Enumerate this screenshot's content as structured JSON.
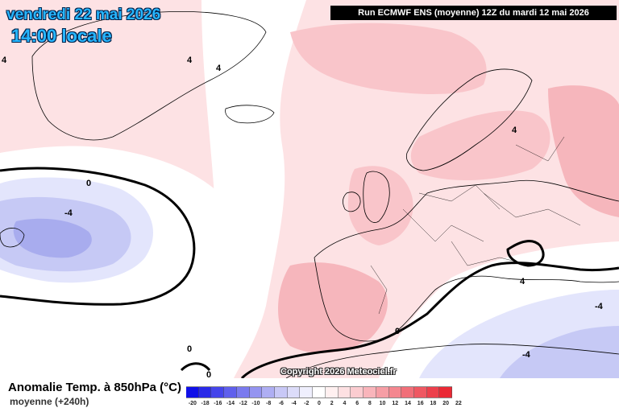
{
  "header": {
    "date": "vendredi 22 mai 2026",
    "time": "14:00 locale",
    "run_info": "Run ECMWF ENS (moyenne) 12Z du mardi 12 mai 2026"
  },
  "map": {
    "copyright": "Copyright 2026 Meteociel.fr",
    "contour_labels": [
      "4",
      "0",
      "-4",
      "0",
      "4",
      "4",
      "4",
      "0",
      "-4",
      "-4",
      "0",
      "4"
    ],
    "colors": {
      "warm_light": "#fde2e4",
      "warm_mid": "#f9c5ca",
      "warm_strong": "#f3aeb4",
      "cool_light": "#e3e5fc",
      "cool_mid": "#c6c9f5",
      "cool_strong": "#a8acee"
    }
  },
  "legend": {
    "title": "Anomalie Temp. à 850hPa (°C)",
    "subtitle": "moyenne  (+240h)",
    "ticks": [
      "-20",
      "-18",
      "-16",
      "-14",
      "-12",
      "-10",
      "-8",
      "-6",
      "-4",
      "-2",
      "0",
      "2",
      "4",
      "6",
      "8",
      "10",
      "12",
      "14",
      "16",
      "18",
      "20",
      "22"
    ],
    "colors": [
      "#1010e8",
      "#2a2ae8",
      "#4545ea",
      "#5f5fec",
      "#7a7aee",
      "#9494f0",
      "#aeaef3",
      "#c8c8f6",
      "#dcdcf9",
      "#efeffd",
      "#ffffff",
      "#fff0f0",
      "#fde0e2",
      "#fbccd0",
      "#f9b5bb",
      "#f69ea5",
      "#f4878f",
      "#f16f79",
      "#ef5862",
      "#ec404c",
      "#ea2935"
    ]
  }
}
